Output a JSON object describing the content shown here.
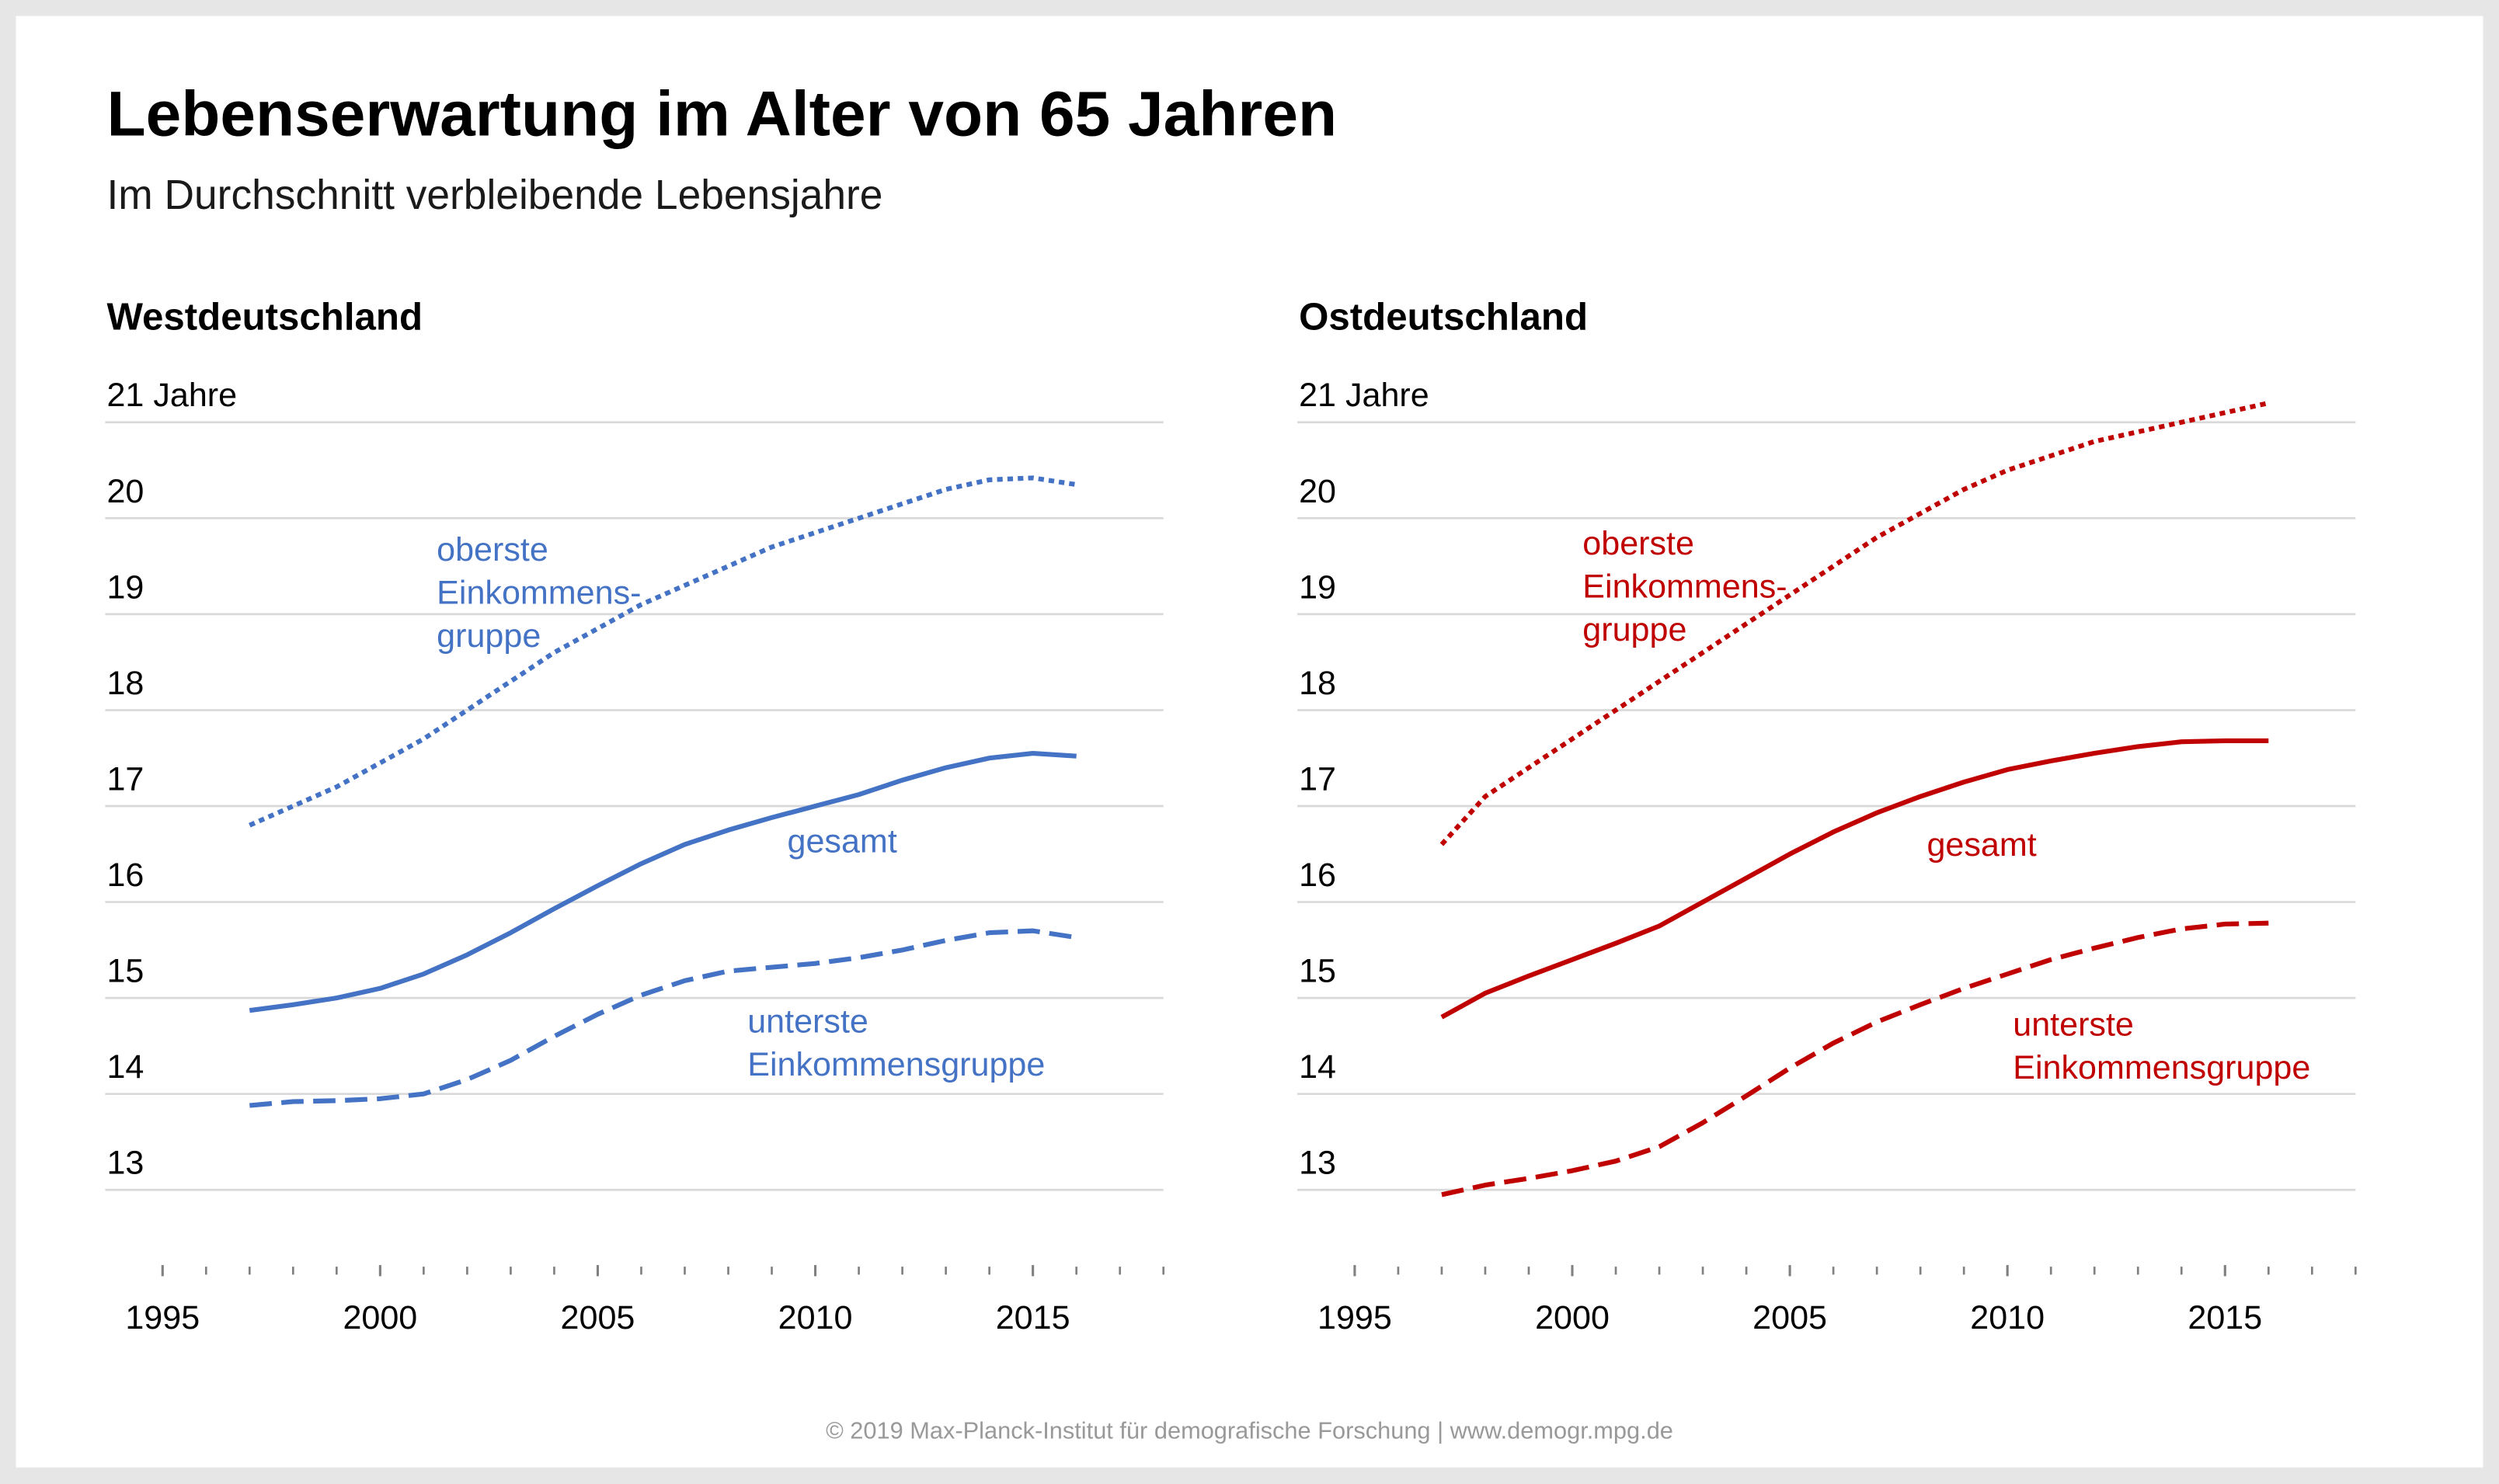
{
  "title": "Lebenserwartung im Alter von 65 Jahren",
  "subtitle": "Im Durchschnitt verbleibende Lebensjahre",
  "source": "© 2019 Max-Planck-Institut für demografische Forschung | www.demogr.mpg.de",
  "chart_data": [
    {
      "type": "line",
      "title": "Westdeutschland",
      "x": [
        1997,
        1998,
        1999,
        2000,
        2001,
        2002,
        2003,
        2004,
        2005,
        2006,
        2007,
        2008,
        2009,
        2010,
        2011,
        2012,
        2013,
        2014,
        2015,
        2016
      ],
      "xlim": [
        1995,
        2018
      ],
      "xticks": [
        1995,
        2000,
        2005,
        2010,
        2015
      ],
      "ylim": [
        12.2,
        21
      ],
      "yticks": [
        13,
        14,
        15,
        16,
        17,
        18,
        19,
        20,
        {
          "value": 21,
          "label": "21 Jahre"
        }
      ],
      "grid": true,
      "series": [
        {
          "name": [
            "oberste",
            "Einkommens-",
            "gruppe"
          ],
          "color": "#4472c4",
          "dash": "dotted",
          "values": [
            16.8,
            17.0,
            17.2,
            17.45,
            17.7,
            18.0,
            18.3,
            18.6,
            18.85,
            19.1,
            19.3,
            19.5,
            19.7,
            19.85,
            20.0,
            20.15,
            20.3,
            20.4,
            20.42,
            20.35
          ]
        },
        {
          "name": [
            "gesamt"
          ],
          "color": "#4472c4",
          "dash": "solid",
          "values": [
            14.87,
            14.93,
            15.0,
            15.1,
            15.25,
            15.45,
            15.68,
            15.93,
            16.17,
            16.4,
            16.6,
            16.75,
            16.88,
            17.0,
            17.12,
            17.27,
            17.4,
            17.5,
            17.55,
            17.52
          ]
        },
        {
          "name": [
            "unterste",
            "Einkommensgruppe"
          ],
          "color": "#4472c4",
          "dash": "dashed",
          "values": [
            13.88,
            13.92,
            13.93,
            13.95,
            14.0,
            14.15,
            14.35,
            14.6,
            14.83,
            15.03,
            15.18,
            15.28,
            15.32,
            15.36,
            15.42,
            15.5,
            15.6,
            15.68,
            15.7,
            15.63
          ]
        }
      ]
    },
    {
      "type": "line",
      "title": "Ostdeutschland",
      "x": [
        1997,
        1998,
        1999,
        2000,
        2001,
        2002,
        2003,
        2004,
        2005,
        2006,
        2007,
        2008,
        2009,
        2010,
        2011,
        2012,
        2013,
        2014,
        2015,
        2016
      ],
      "xlim": [
        1995,
        2018
      ],
      "xticks": [
        1995,
        2000,
        2005,
        2010,
        2015
      ],
      "ylim": [
        12.2,
        21
      ],
      "yticks": [
        13,
        14,
        15,
        16,
        17,
        18,
        19,
        20,
        {
          "value": 21,
          "label": "21 Jahre"
        }
      ],
      "grid": true,
      "series": [
        {
          "name": [
            "oberste",
            "Einkommens-",
            "gruppe"
          ],
          "color": "#c00000",
          "dash": "dotted",
          "values": [
            16.6,
            17.1,
            17.4,
            17.7,
            18.0,
            18.3,
            18.6,
            18.9,
            19.2,
            19.5,
            19.8,
            20.05,
            20.3,
            20.5,
            20.65,
            20.8,
            20.9,
            21.0,
            21.1,
            21.2
          ]
        },
        {
          "name": [
            "gesamt"
          ],
          "color": "#c00000",
          "dash": "solid",
          "values": [
            14.8,
            15.05,
            15.23,
            15.4,
            15.57,
            15.75,
            16.0,
            16.25,
            16.5,
            16.73,
            16.93,
            17.1,
            17.25,
            17.38,
            17.47,
            17.55,
            17.62,
            17.67,
            17.68,
            17.68
          ]
        },
        {
          "name": [
            "unterste",
            "Einkommensgruppe"
          ],
          "color": "#c00000",
          "dash": "dashed",
          "values": [
            12.95,
            13.05,
            13.12,
            13.2,
            13.3,
            13.45,
            13.7,
            13.98,
            14.27,
            14.53,
            14.75,
            14.93,
            15.1,
            15.25,
            15.4,
            15.52,
            15.63,
            15.72,
            15.77,
            15.78
          ]
        }
      ]
    }
  ]
}
